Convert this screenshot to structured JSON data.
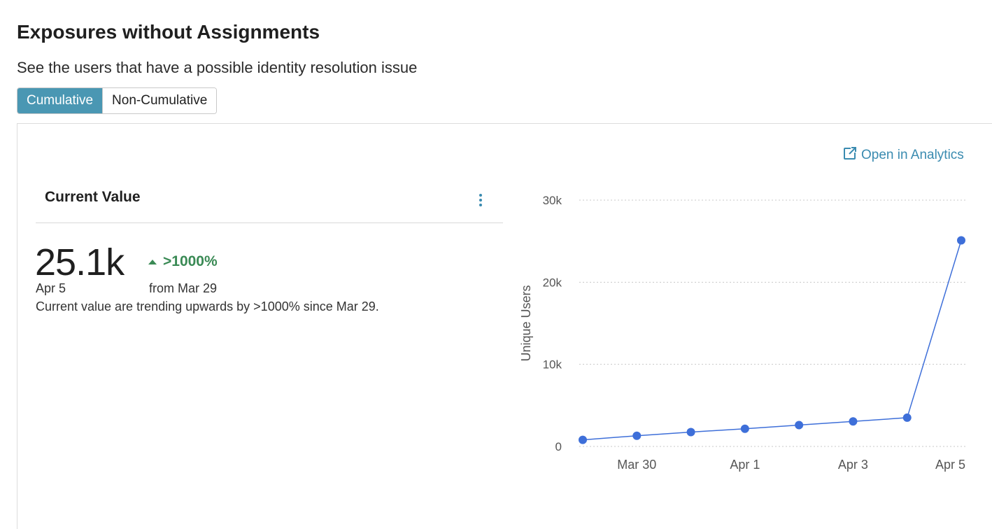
{
  "header": {
    "title": "Exposures without Assignments",
    "subtitle": "See the users that have a possible identity resolution issue"
  },
  "toggle": {
    "options": [
      "Cumulative",
      "Non-Cumulative"
    ],
    "selected": "Cumulative"
  },
  "panel": {
    "open_analytics_label": "Open in Analytics",
    "card_title": "Current Value",
    "current_value": "25.1k",
    "current_date": "Apr 5",
    "delta": ">1000%",
    "delta_from": "from Mar 29",
    "trend_text": "Current value are trending upwards by >1000% since Mar 29."
  },
  "colors": {
    "accent": "#4a97b3",
    "link": "#3a8bb0",
    "positive": "#3a8a55",
    "series": "#3e6fd9"
  },
  "icons": {
    "open_analytics": "external-link-icon",
    "menu": "kebab-menu-icon",
    "delta": "triangle-up-icon"
  },
  "chart_data": {
    "type": "line",
    "x": [
      "Mar 29",
      "Mar 30",
      "Mar 31",
      "Apr 1",
      "Apr 2",
      "Apr 3",
      "Apr 4",
      "Apr 5"
    ],
    "x_tick_labels": [
      "Mar 30",
      "Apr 1",
      "Apr 3",
      "Apr 5"
    ],
    "series": [
      {
        "values": [
          800,
          1300,
          1750,
          2150,
          2600,
          3050,
          3500,
          25100
        ]
      }
    ],
    "ylabel": "Unique Users",
    "xlabel": "",
    "ylim": [
      0,
      30000
    ],
    "y_ticks": [
      0,
      10000,
      20000,
      30000
    ],
    "y_tick_labels": [
      "0",
      "10k",
      "20k",
      "30k"
    ],
    "grid": true
  }
}
